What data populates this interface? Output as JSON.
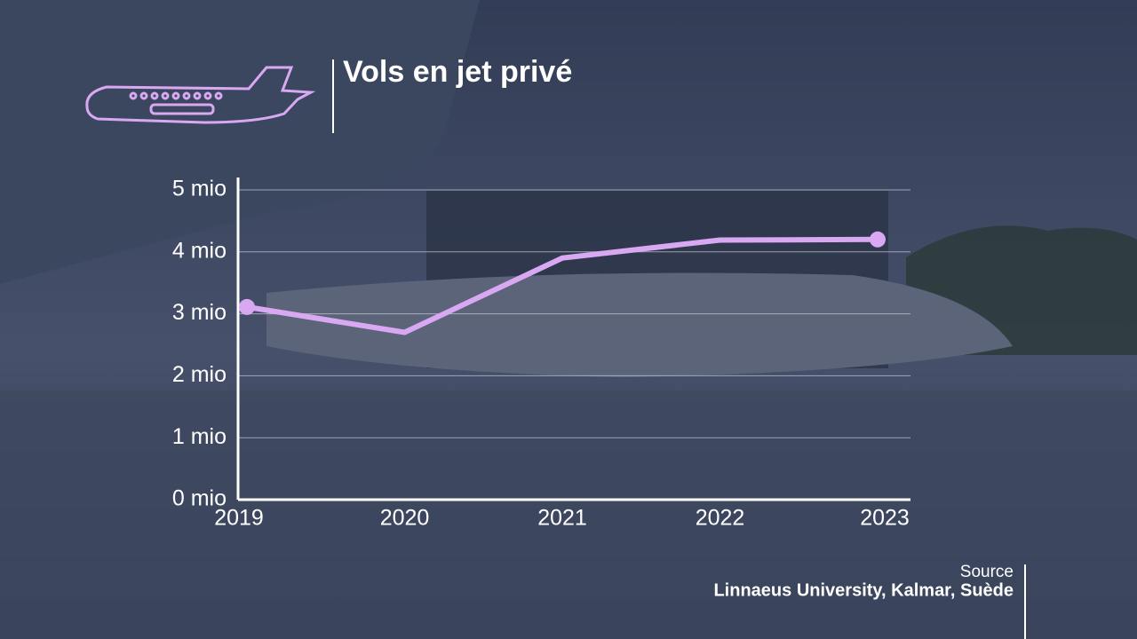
{
  "chart_data": {
    "type": "line",
    "title": "Vols en jet privé",
    "categories": [
      "2019",
      "2020",
      "2021",
      "2022",
      "2023"
    ],
    "values": [
      3.11,
      2.7,
      3.9,
      4.19,
      4.2
    ],
    "color": "#d9a8f2",
    "ylim": [
      0,
      5.2
    ],
    "yticks": [
      {
        "value": 0,
        "label": "0 mio"
      },
      {
        "value": 1,
        "label": "1 mio"
      },
      {
        "value": 2,
        "label": "2 mio"
      },
      {
        "value": 3,
        "label": "3 mio"
      },
      {
        "value": 4,
        "label": "4 mio"
      },
      {
        "value": 5,
        "label": "5 mio"
      }
    ],
    "grid": true,
    "source_label": "Source",
    "source": "Linnaeus University, Kalmar, Suède"
  }
}
